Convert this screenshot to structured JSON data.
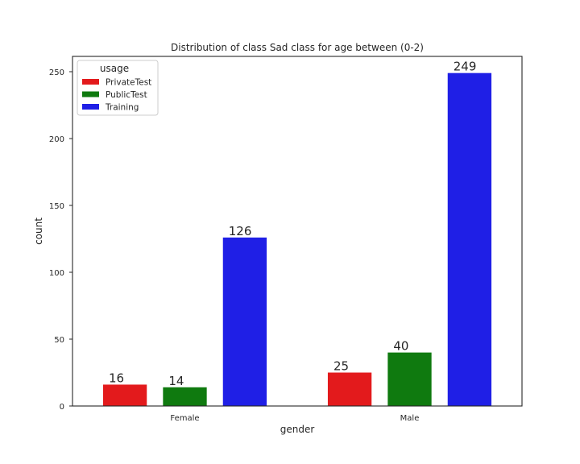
{
  "chart_data": {
    "type": "bar",
    "title": "Distribution of class Sad class for age between (0-2)",
    "xlabel": "gender",
    "ylabel": "count",
    "categories": [
      "Female",
      "Male"
    ],
    "ylim": [
      0,
      261.45
    ],
    "yticks": [
      0,
      50,
      100,
      150,
      200,
      250
    ],
    "grid": false,
    "legend": {
      "title": "usage",
      "placement": "top-left"
    },
    "series": [
      {
        "name": "PrivateTest",
        "color": "#e31a1c",
        "values": [
          16,
          25
        ]
      },
      {
        "name": "PublicTest",
        "color": "#0f7a0f",
        "values": [
          14,
          40
        ]
      },
      {
        "name": "Training",
        "color": "#1f1fe6",
        "values": [
          126,
          249
        ]
      }
    ]
  }
}
